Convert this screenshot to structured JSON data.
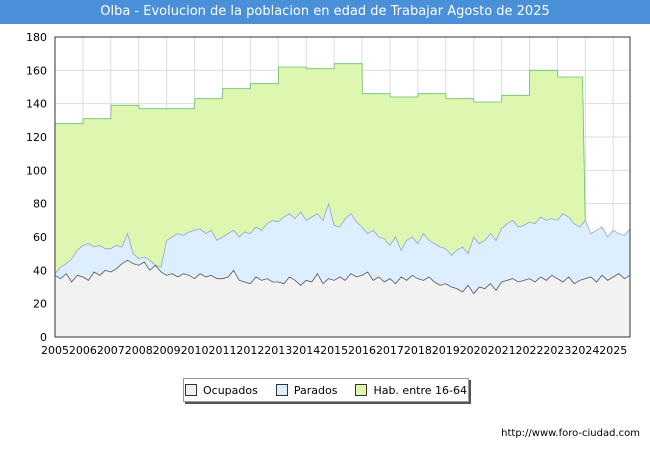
{
  "chart_data": {
    "type": "area",
    "title": "Olba - Evolucion de la poblacion en edad de Trabajar Agosto de 2025",
    "xlabel": "",
    "ylabel": "",
    "ylim": [
      0,
      180
    ],
    "xlim": [
      2005,
      2025.6
    ],
    "y_ticks": [
      0,
      20,
      40,
      60,
      80,
      100,
      120,
      140,
      160,
      180
    ],
    "x_ticks": [
      "2005",
      "2006",
      "2007",
      "2008",
      "2009",
      "2010",
      "2011",
      "2012",
      "2013",
      "2014",
      "2015",
      "2016",
      "2017",
      "2018",
      "2019",
      "2020",
      "2021",
      "2022",
      "2023",
      "2024",
      "2025"
    ],
    "grid": true,
    "legend_position": "bottom",
    "series": [
      {
        "name": "Ocupados",
        "color": "#f2f2f2",
        "line_color": "#555555",
        "x": [
          2005.0,
          2005.2,
          2005.4,
          2005.6,
          2005.8,
          2006.0,
          2006.2,
          2006.4,
          2006.6,
          2006.8,
          2007.0,
          2007.2,
          2007.4,
          2007.6,
          2007.8,
          2008.0,
          2008.2,
          2008.4,
          2008.6,
          2008.8,
          2009.0,
          2009.2,
          2009.4,
          2009.6,
          2009.8,
          2010.0,
          2010.2,
          2010.4,
          2010.6,
          2010.8,
          2011.0,
          2011.2,
          2011.4,
          2011.6,
          2011.8,
          2012.0,
          2012.2,
          2012.4,
          2012.6,
          2012.8,
          2013.0,
          2013.2,
          2013.4,
          2013.6,
          2013.8,
          2014.0,
          2014.2,
          2014.4,
          2014.6,
          2014.8,
          2015.0,
          2015.2,
          2015.4,
          2015.6,
          2015.8,
          2016.0,
          2016.2,
          2016.4,
          2016.6,
          2016.8,
          2017.0,
          2017.2,
          2017.4,
          2017.6,
          2017.8,
          2018.0,
          2018.2,
          2018.4,
          2018.6,
          2018.8,
          2019.0,
          2019.2,
          2019.4,
          2019.6,
          2019.8,
          2020.0,
          2020.2,
          2020.4,
          2020.6,
          2020.8,
          2021.0,
          2021.2,
          2021.4,
          2021.6,
          2021.8,
          2022.0,
          2022.2,
          2022.4,
          2022.6,
          2022.8,
          2023.0,
          2023.2,
          2023.4,
          2023.6,
          2023.8,
          2024.0,
          2024.2,
          2024.4,
          2024.6,
          2024.8,
          2025.0,
          2025.2,
          2025.4,
          2025.6
        ],
        "values": [
          37,
          35,
          38,
          33,
          37,
          36,
          34,
          39,
          37,
          40,
          39,
          41,
          44,
          46,
          44,
          43,
          45,
          40,
          43,
          39,
          37,
          38,
          36,
          38,
          37,
          35,
          38,
          36,
          37,
          35,
          35,
          36,
          40,
          34,
          33,
          32,
          36,
          34,
          35,
          33,
          33,
          32,
          36,
          34,
          31,
          34,
          33,
          38,
          32,
          35,
          34,
          36,
          34,
          38,
          36,
          37,
          39,
          34,
          36,
          33,
          35,
          32,
          36,
          34,
          37,
          35,
          34,
          36,
          33,
          31,
          32,
          30,
          29,
          27,
          31,
          26,
          30,
          29,
          32,
          28,
          33,
          34,
          35,
          33,
          34,
          35,
          33,
          36,
          34,
          37,
          35,
          33,
          36,
          32,
          34,
          35,
          36,
          33,
          37,
          34,
          36,
          38,
          35,
          37
        ]
      },
      {
        "name": "Parados",
        "color": "#dceeff",
        "line_color": "#8aa9d0",
        "x": [
          2005.0,
          2005.2,
          2005.4,
          2005.6,
          2005.8,
          2006.0,
          2006.2,
          2006.4,
          2006.6,
          2006.8,
          2007.0,
          2007.2,
          2007.4,
          2007.6,
          2007.8,
          2008.0,
          2008.2,
          2008.4,
          2008.6,
          2008.8,
          2009.0,
          2009.2,
          2009.4,
          2009.6,
          2009.8,
          2010.0,
          2010.2,
          2010.4,
          2010.6,
          2010.8,
          2011.0,
          2011.2,
          2011.4,
          2011.6,
          2011.8,
          2012.0,
          2012.2,
          2012.4,
          2012.6,
          2012.8,
          2013.0,
          2013.2,
          2013.4,
          2013.6,
          2013.8,
          2014.0,
          2014.2,
          2014.4,
          2014.6,
          2014.8,
          2015.0,
          2015.2,
          2015.4,
          2015.6,
          2015.8,
          2016.0,
          2016.2,
          2016.4,
          2016.6,
          2016.8,
          2017.0,
          2017.2,
          2017.4,
          2017.6,
          2017.8,
          2018.0,
          2018.2,
          2018.4,
          2018.6,
          2018.8,
          2019.0,
          2019.2,
          2019.4,
          2019.6,
          2019.8,
          2020.0,
          2020.2,
          2020.4,
          2020.6,
          2020.8,
          2021.0,
          2021.2,
          2021.4,
          2021.6,
          2021.8,
          2022.0,
          2022.2,
          2022.4,
          2022.6,
          2022.8,
          2023.0,
          2023.2,
          2023.4,
          2023.6,
          2023.8,
          2024.0,
          2024.2,
          2024.4,
          2024.6,
          2024.8,
          2025.0,
          2025.2,
          2025.4,
          2025.6
        ],
        "values": [
          38,
          42,
          44,
          47,
          52,
          55,
          56,
          54,
          55,
          53,
          53,
          55,
          54,
          62,
          50,
          47,
          48,
          46,
          43,
          42,
          58,
          60,
          62,
          61,
          63,
          64,
          65,
          62,
          64,
          58,
          60,
          62,
          64,
          60,
          63,
          62,
          66,
          64,
          68,
          70,
          69,
          72,
          74,
          71,
          75,
          70,
          72,
          74,
          70,
          80,
          67,
          66,
          71,
          74,
          69,
          66,
          62,
          64,
          60,
          59,
          55,
          60,
          52,
          58,
          60,
          56,
          62,
          58,
          56,
          54,
          53,
          49,
          52,
          54,
          50,
          60,
          56,
          58,
          62,
          58,
          65,
          68,
          70,
          66,
          67,
          69,
          68,
          72,
          70,
          71,
          70,
          74,
          72,
          68,
          66,
          70,
          62,
          64,
          66,
          60,
          64,
          62,
          61,
          65
        ]
      },
      {
        "name": "Hab. entre 16-64",
        "color": "#ddf7b0",
        "line_color": "#6abf6a",
        "x": [
          2005.0,
          2006.0,
          2006.01,
          2007.0,
          2007.01,
          2008.0,
          2008.01,
          2010.0,
          2010.01,
          2011.0,
          2011.01,
          2012.0,
          2012.01,
          2013.0,
          2013.01,
          2014.0,
          2014.01,
          2015.0,
          2015.01,
          2016.0,
          2016.01,
          2017.0,
          2017.01,
          2018.0,
          2018.01,
          2019.0,
          2019.01,
          2020.0,
          2020.01,
          2021.0,
          2021.01,
          2022.0,
          2022.01,
          2023.0,
          2023.01,
          2023.9,
          2024.0
        ],
        "values": [
          128,
          128,
          131,
          131,
          139,
          139,
          137,
          137,
          143,
          143,
          149,
          149,
          152,
          152,
          162,
          162,
          161,
          161,
          164,
          164,
          146,
          146,
          144,
          144,
          146,
          146,
          143,
          143,
          141,
          141,
          145,
          145,
          160,
          160,
          156,
          156,
          65
        ]
      }
    ],
    "source_note": "http://www.foro-ciudad.com"
  }
}
